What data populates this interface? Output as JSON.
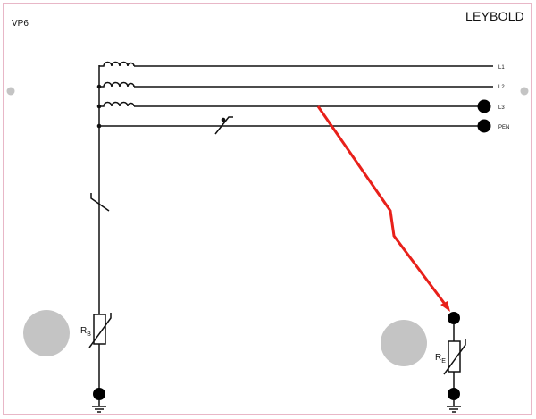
{
  "panel": {
    "id_label": "VP6",
    "brand": "LEYBOLD"
  },
  "lines": [
    {
      "name": "L1"
    },
    {
      "name": "L2"
    },
    {
      "name": "L3"
    },
    {
      "name": "PEN"
    }
  ],
  "components": {
    "rb": {
      "main": "R",
      "sub": "B"
    },
    "re": {
      "main": "R",
      "sub": "E"
    }
  },
  "colors": {
    "fault": "#e8201a",
    "conductor": "#111111",
    "terminal": "#000000",
    "mount": "#c4c4c4",
    "border": "#e8b7c7"
  }
}
